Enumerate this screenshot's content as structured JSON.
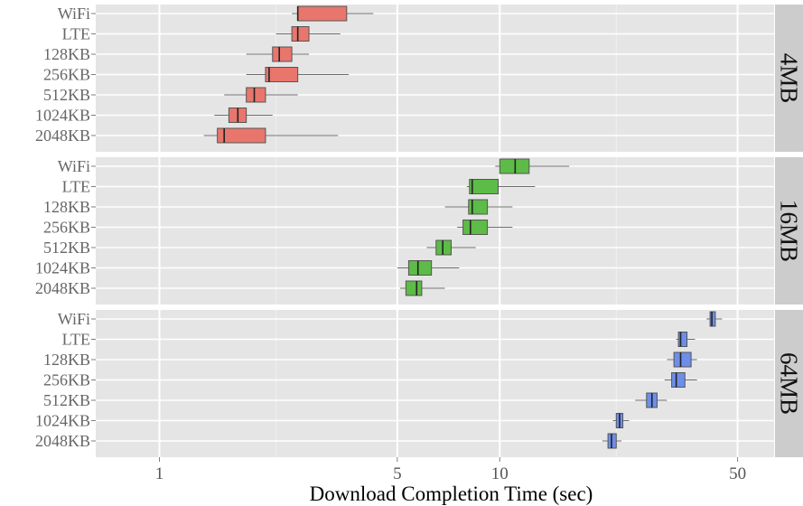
{
  "chart_data": {
    "type": "boxplot",
    "x_scale": "log10",
    "xlabel": "Download Completion Time (sec)",
    "xlim": [
      0.65,
      64
    ],
    "x_ticks": [
      1,
      5,
      10,
      50
    ],
    "x_tick_labels": [
      "1",
      "5",
      "10",
      "50"
    ],
    "x_minor_gridlines": [
      2.2,
      22
    ],
    "grid": true,
    "categories": [
      "WiFi",
      "LTE",
      "128KB",
      "256KB",
      "512KB",
      "1024KB",
      "2048KB"
    ],
    "panels": [
      {
        "label": "4MB",
        "color": "#E8766C",
        "boxes": [
          {
            "category": "WiFi",
            "min": 2.45,
            "q1": 2.55,
            "median": 2.55,
            "q3": 3.55,
            "max": 4.25
          },
          {
            "category": "LTE",
            "min": 2.2,
            "q1": 2.45,
            "median": 2.55,
            "q3": 2.75,
            "max": 3.4
          },
          {
            "category": "128KB",
            "min": 1.8,
            "q1": 2.15,
            "median": 2.25,
            "q3": 2.45,
            "max": 2.75
          },
          {
            "category": "256KB",
            "min": 1.8,
            "q1": 2.05,
            "median": 2.1,
            "q3": 2.55,
            "max": 3.6
          },
          {
            "category": "512KB",
            "min": 1.55,
            "q1": 1.8,
            "median": 1.9,
            "q3": 2.05,
            "max": 2.55
          },
          {
            "category": "1024KB",
            "min": 1.45,
            "q1": 1.6,
            "median": 1.7,
            "q3": 1.8,
            "max": 2.15
          },
          {
            "category": "2048KB",
            "min": 1.35,
            "q1": 1.48,
            "median": 1.55,
            "q3": 2.05,
            "max": 3.35
          }
        ]
      },
      {
        "label": "16MB",
        "color": "#5DBB47",
        "boxes": [
          {
            "category": "WiFi",
            "min": 9.7,
            "q1": 10.0,
            "median": 11.1,
            "q3": 12.2,
            "max": 16.0
          },
          {
            "category": "LTE",
            "min": 8.0,
            "q1": 8.15,
            "median": 8.3,
            "q3": 9.9,
            "max": 12.7
          },
          {
            "category": "128KB",
            "min": 6.9,
            "q1": 8.1,
            "median": 8.3,
            "q3": 9.2,
            "max": 10.9
          },
          {
            "category": "256KB",
            "min": 7.5,
            "q1": 7.8,
            "median": 8.2,
            "q3": 9.2,
            "max": 10.9
          },
          {
            "category": "512KB",
            "min": 6.1,
            "q1": 6.5,
            "median": 6.8,
            "q3": 7.2,
            "max": 8.5
          },
          {
            "category": "1024KB",
            "min": 5.0,
            "q1": 5.4,
            "median": 5.75,
            "q3": 6.3,
            "max": 7.6
          },
          {
            "category": "2048KB",
            "min": 5.1,
            "q1": 5.3,
            "median": 5.7,
            "q3": 5.9,
            "max": 6.9
          }
        ]
      },
      {
        "label": "64MB",
        "color": "#6D8FEA",
        "boxes": [
          {
            "category": "WiFi",
            "min": 40.5,
            "q1": 41.5,
            "median": 42.0,
            "q3": 43.0,
            "max": 45.0
          },
          {
            "category": "LTE",
            "min": 33.0,
            "q1": 33.5,
            "median": 34.0,
            "q3": 35.5,
            "max": 37.5
          },
          {
            "category": "128KB",
            "min": 31.0,
            "q1": 32.5,
            "median": 34.0,
            "q3": 36.5,
            "max": 38.0
          },
          {
            "category": "256KB",
            "min": 30.5,
            "q1": 32.0,
            "median": 33.0,
            "q3": 35.0,
            "max": 38.0
          },
          {
            "category": "512KB",
            "min": 25.0,
            "q1": 27.0,
            "median": 28.0,
            "q3": 29.0,
            "max": 31.0
          },
          {
            "category": "1024KB",
            "min": 21.5,
            "q1": 22.0,
            "median": 22.5,
            "q3": 23.0,
            "max": 24.0
          },
          {
            "category": "2048KB",
            "min": 20.0,
            "q1": 20.8,
            "median": 21.3,
            "q3": 22.0,
            "max": 22.8
          }
        ]
      }
    ]
  }
}
